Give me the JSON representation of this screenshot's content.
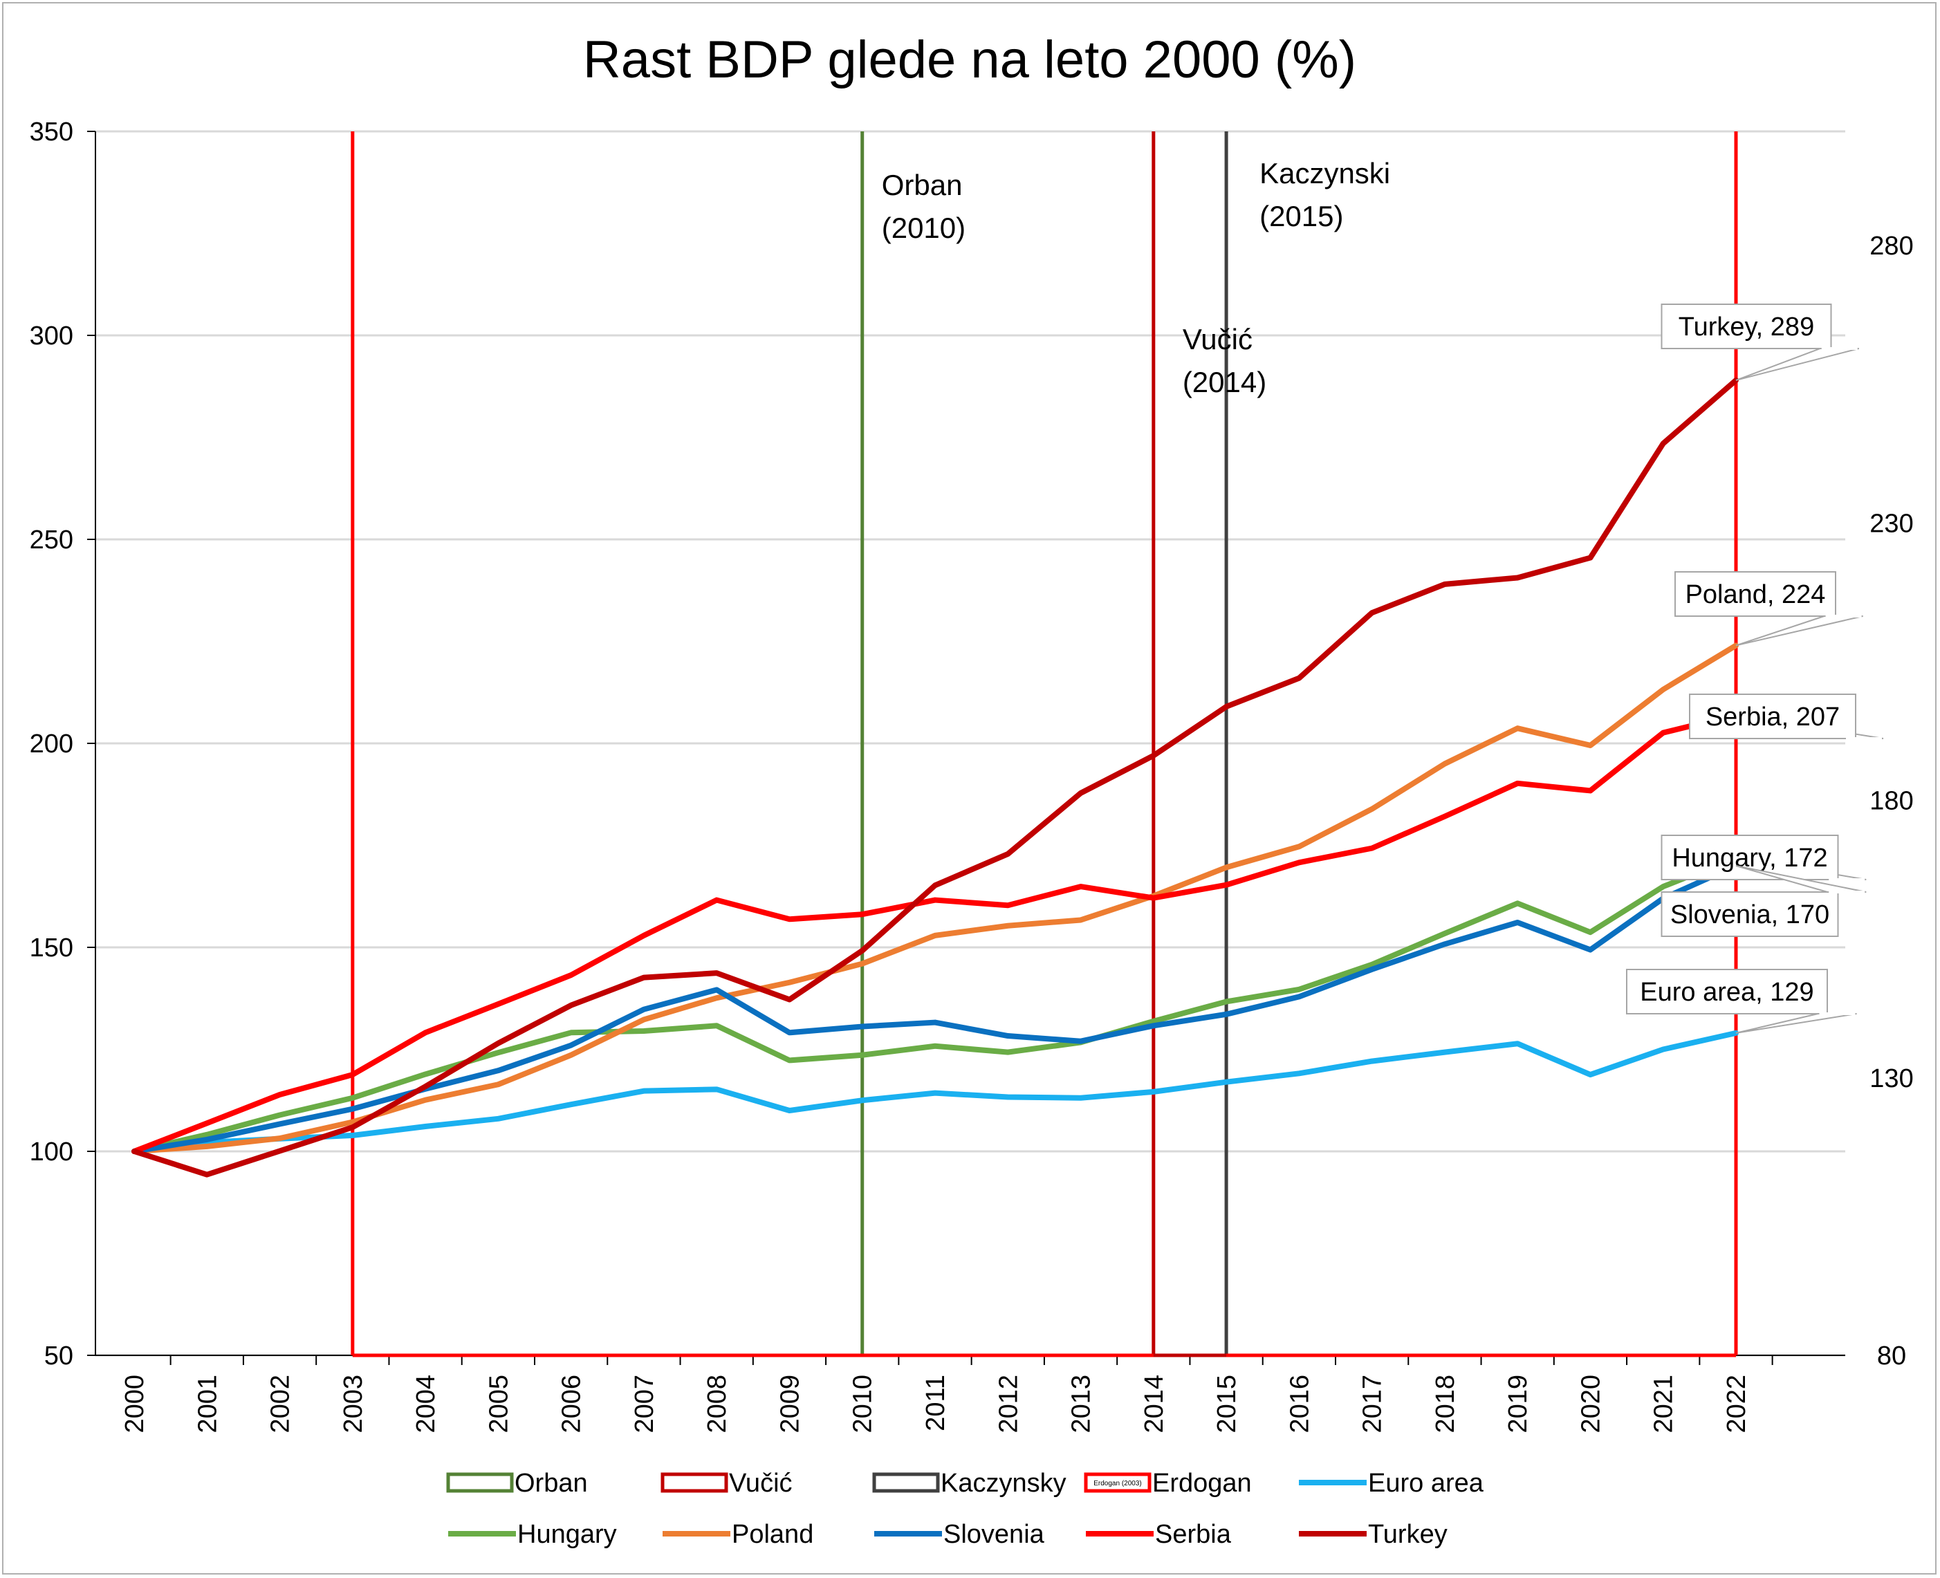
{
  "chart_data": {
    "type": "line",
    "title": "Rast BDP glede na leto 2000 (%)",
    "x": [
      2000,
      2001,
      2002,
      2003,
      2004,
      2005,
      2006,
      2007,
      2008,
      2009,
      2010,
      2011,
      2012,
      2013,
      2014,
      2015,
      2016,
      2017,
      2018,
      2019,
      2020,
      2021,
      2022
    ],
    "xtick_labels": [
      "2000",
      "2001",
      "2002",
      "2003",
      "2004",
      "2005",
      "2006",
      "2007",
      "2008",
      "2009",
      "2010",
      "2011",
      "2012",
      "2013",
      "2014",
      "2015",
      "2016",
      "2017",
      "2018",
      "2019",
      "2020",
      "2021",
      "2022"
    ],
    "ylim": [
      50,
      350
    ],
    "yticks": [
      50,
      100,
      150,
      200,
      250,
      300,
      350
    ],
    "ytick_labels": [
      "50",
      "100",
      "150",
      "200",
      "250",
      "300",
      "350"
    ],
    "y2_tick_labels": [
      {
        "label": "80",
        "at": 50
      },
      {
        "label": "130",
        "at": 118
      },
      {
        "label": "180",
        "at": 186
      },
      {
        "label": "230",
        "at": 254
      },
      {
        "label": "280",
        "at": 322
      }
    ],
    "grid": true,
    "series": [
      {
        "name": "Euro area",
        "color": "#1ab0f0",
        "values": [
          100,
          102.2,
          103.1,
          103.9,
          106.1,
          108,
          111.5,
          114.8,
          115.2,
          110,
          112.5,
          114.3,
          113.3,
          113.1,
          114.6,
          117,
          119.1,
          122.1,
          124.3,
          126.4,
          118.8,
          125,
          129
        ]
      },
      {
        "name": "Hungary",
        "color": "#6aac46",
        "values": [
          100,
          104.1,
          108.9,
          113.1,
          118.9,
          124.2,
          129.1,
          129.5,
          130.8,
          122.3,
          123.6,
          125.8,
          124.3,
          126.7,
          131.9,
          136.7,
          139.7,
          145.8,
          153.4,
          160.8,
          153.7,
          164.9,
          172
        ]
      },
      {
        "name": "Poland",
        "color": "#ed7d31",
        "values": [
          100,
          101.2,
          103.2,
          107.2,
          112.6,
          116.4,
          123.6,
          132.3,
          137.6,
          141.4,
          146,
          152.9,
          155.3,
          156.7,
          162.6,
          169.6,
          174.7,
          183.9,
          195,
          203.7,
          199.5,
          213.2,
          224
        ]
      },
      {
        "name": "Slovenia",
        "color": "#0a70c0",
        "values": [
          100,
          102.9,
          106.7,
          110.4,
          115.3,
          119.8,
          126,
          134.8,
          139.6,
          129.1,
          130.6,
          131.6,
          128.3,
          127,
          130.8,
          133.6,
          137.9,
          144.6,
          150.8,
          156.1,
          149.4,
          162,
          170
        ]
      },
      {
        "name": "Serbia",
        "color": "#ff0000",
        "values": [
          100,
          106.9,
          113.9,
          118.8,
          129.1,
          136.1,
          143.2,
          152.9,
          161.6,
          156.9,
          158.1,
          161.6,
          160.3,
          164.9,
          162.1,
          165.3,
          170.8,
          174.3,
          182.1,
          190.2,
          188.4,
          202.6,
          207
        ]
      },
      {
        "name": "Turkey",
        "color": "#c00000",
        "values": [
          100,
          94.3,
          100.1,
          105.9,
          115.9,
          126.5,
          135.8,
          142.6,
          143.7,
          137.2,
          149.2,
          165.2,
          172.9,
          187.8,
          197,
          209,
          216,
          232,
          239,
          240.6,
          245.5,
          273.5,
          289
        ]
      }
    ],
    "callouts": [
      {
        "series": "Turkey",
        "label": "Turkey, 289",
        "value": 289
      },
      {
        "series": "Poland",
        "label": "Poland, 224",
        "value": 224
      },
      {
        "series": "Serbia",
        "label": "Serbia, 207",
        "value": 207
      },
      {
        "series": "Hungary",
        "label": "Hungary, 172",
        "value": 172
      },
      {
        "series": "Slovenia",
        "label": "Slovenia, 170",
        "value": 170
      },
      {
        "series": "Euro area",
        "label": "Euro area, 129",
        "value": 129
      }
    ],
    "vertical_markers": [
      {
        "name": "Erdogan",
        "year": 2003,
        "color": "#ff0000",
        "label_lines": []
      },
      {
        "name": "Orban",
        "year": 2010,
        "color": "#548235",
        "label_lines": [
          "Orban",
          "(2010)"
        ]
      },
      {
        "name": "Vučić",
        "year": 2014,
        "color": "#c00000",
        "label_lines": [
          "Vučić",
          "(2014)"
        ]
      },
      {
        "name": "Kaczynski",
        "year": 2015,
        "color": "#404040",
        "label_lines": [
          "Kaczynski",
          "(2015)"
        ]
      },
      {
        "name": "Erdogan-end",
        "year": 2022,
        "color": "#ff0000",
        "label_lines": []
      }
    ],
    "legend": [
      {
        "label": "Orban",
        "kind": "box",
        "color": "#548235"
      },
      {
        "label": "Vučić",
        "kind": "box",
        "color": "#c00000"
      },
      {
        "label": "Kaczynsky",
        "kind": "box",
        "color": "#404040"
      },
      {
        "label": "Erdogan",
        "kind": "box-small",
        "color": "#ff0000",
        "small_text": "Erdogan (2003)"
      },
      {
        "label": "Euro area",
        "kind": "line",
        "color": "#1ab0f0"
      },
      {
        "label": "Hungary",
        "kind": "line",
        "color": "#6aac46"
      },
      {
        "label": "Poland",
        "kind": "line",
        "color": "#ed7d31"
      },
      {
        "label": "Slovenia",
        "kind": "line",
        "color": "#0a70c0"
      },
      {
        "label": "Serbia",
        "kind": "line",
        "color": "#ff0000"
      },
      {
        "label": "Turkey",
        "kind": "line",
        "color": "#c00000"
      }
    ]
  }
}
